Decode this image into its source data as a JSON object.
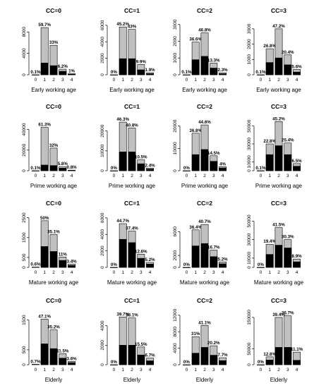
{
  "chart_data": [
    {
      "type": "bar",
      "title": "CC=0",
      "xlabel": "Early working age",
      "categories": [
        "0",
        "1",
        "2",
        "3",
        "4"
      ],
      "ylim": [
        0,
        10000
      ],
      "yticks": [
        0,
        4000,
        8000
      ],
      "series": [
        {
          "values": [
            8,
            8800,
            5500,
            1050,
            200
          ]
        },
        {
          "values": [
            0,
            2200,
            1700,
            650,
            100
          ]
        }
      ],
      "data_labels": [
        "0.1%",
        "59.7%",
        "33%",
        "6.2%",
        "1%"
      ]
    },
    {
      "type": "bar",
      "title": "CC=1",
      "xlabel": "Early working age",
      "categories": [
        "0",
        "1",
        "2",
        "3",
        "4"
      ],
      "ylim": [
        0,
        6500
      ],
      "yticks": [
        0,
        2000,
        4000,
        6000
      ],
      "series": [
        {
          "values": [
            3,
            5800,
            5500,
            1250,
            250
          ]
        },
        {
          "values": [
            0,
            1950,
            1950,
            600,
            130
          ]
        }
      ],
      "data_labels": [
        "0%",
        "45.2%",
        "43%",
        "9.9%",
        "1.9%"
      ]
    },
    {
      "type": "bar",
      "title": "CC=2",
      "xlabel": "Early working age",
      "categories": [
        "0",
        "1",
        "2",
        "3",
        "4"
      ],
      "ylim": [
        0,
        3200
      ],
      "yticks": [
        0,
        1000,
        2000,
        3000
      ],
      "series": [
        {
          "values": [
            3,
            1950,
            2500,
            700,
            120
          ]
        },
        {
          "values": [
            0,
            900,
            1100,
            400,
            60
          ]
        }
      ],
      "data_labels": [
        "0.1%",
        "36.6%",
        "46.8%",
        "13.3%",
        "2.3%"
      ]
    },
    {
      "type": "bar",
      "title": "CC=3",
      "xlabel": "Early working age",
      "categories": [
        "0",
        "1",
        "2",
        "3",
        "4"
      ],
      "ylim": [
        0,
        3500
      ],
      "yticks": [
        0,
        1000,
        2000,
        3000
      ],
      "series": [
        {
          "values": [
            3,
            1700,
            3000,
            1300,
            350
          ]
        },
        {
          "values": [
            0,
            800,
            1100,
            650,
            180
          ]
        }
      ],
      "data_labels": [
        "0.1%",
        "26.8%",
        "47.2%",
        "20.4%",
        "5.6%"
      ]
    },
    {
      "type": "bar",
      "title": "CC=0",
      "xlabel": "Prime working age",
      "categories": [
        "0",
        "1",
        "2",
        "3",
        "4"
      ],
      "ylim": [
        0,
        52000
      ],
      "yticks": [
        0,
        20000,
        40000
      ],
      "series": [
        {
          "values": [
            40,
            42000,
            22000,
            4000,
            560
          ]
        },
        {
          "values": [
            0,
            5500,
            5000,
            2500,
            400
          ]
        }
      ],
      "data_labels": [
        "0.1%",
        "61.3%",
        "32%",
        "5.8%",
        "0.8%"
      ]
    },
    {
      "type": "bar",
      "title": "CC=1",
      "xlabel": "Prime working age",
      "categories": [
        "0",
        "1",
        "2",
        "3",
        "4"
      ],
      "ylim": [
        0,
        27000
      ],
      "yticks": [
        0,
        10000,
        20000
      ],
      "series": [
        {
          "values": [
            10,
            24500,
            21500,
            5500,
            1300
          ]
        },
        {
          "values": [
            0,
            9500,
            9500,
            3500,
            800
          ]
        }
      ],
      "data_labels": [
        "0%",
        "46.3%",
        "40.8%",
        "10.5%",
        "2.4%"
      ]
    },
    {
      "type": "bar",
      "title": "CC=2",
      "xlabel": "Prime working age",
      "categories": [
        "0",
        "1",
        "2",
        "3",
        "4"
      ],
      "ylim": [
        0,
        24000
      ],
      "yticks": [
        0,
        10000,
        20000
      ],
      "series": [
        {
          "values": [
            10,
            16800,
            20500,
            6700,
            1800
          ]
        },
        {
          "values": [
            0,
            7200,
            9500,
            4200,
            1200
          ]
        }
      ],
      "data_labels": [
        "0%",
        "36.8%",
        "44.6%",
        "14.5%",
        "4%"
      ]
    },
    {
      "type": "bar",
      "title": "CC=3",
      "xlabel": "Prime working age",
      "categories": [
        "0",
        "1",
        "2",
        "3",
        "4"
      ],
      "ylim": [
        0,
        60000
      ],
      "yticks": [
        0,
        10000,
        30000,
        50000
      ],
      "series": [
        {
          "values": [
            100,
            30000,
            55000,
            31000,
            8000
          ]
        },
        {
          "values": [
            0,
            18000,
            28000,
            18000,
            5000
          ]
        }
      ],
      "data_labels": [
        "0.1%",
        "22.8%",
        "45.2%",
        "25.4%",
        "6.5%"
      ]
    },
    {
      "type": "bar",
      "title": "CC=0",
      "xlabel": "Mature working age",
      "categories": [
        "0",
        "1",
        "2",
        "3",
        "4"
      ],
      "ylim": [
        0,
        2700
      ],
      "yticks": [
        0,
        500,
        1500,
        2500
      ],
      "series": [
        {
          "values": [
            15,
            2350,
            1650,
            520,
            160
          ]
        },
        {
          "values": [
            0,
            1050,
            800,
            350,
            100
          ]
        }
      ],
      "data_labels": [
        "0.6%",
        "50%",
        "35.1%",
        "11%",
        "3.4%"
      ]
    },
    {
      "type": "bar",
      "title": "CC=1",
      "xlabel": "Mature working age",
      "categories": [
        "0",
        "1",
        "2",
        "3",
        "4"
      ],
      "ylim": [
        0,
        6500
      ],
      "yticks": [
        0,
        2000,
        4000,
        6000
      ],
      "series": [
        {
          "values": [
            5,
            5300,
            4400,
            1600,
            600
          ]
        },
        {
          "values": [
            0,
            3400,
            3000,
            1100,
            400
          ]
        }
      ],
      "data_labels": [
        "0%",
        "44.7%",
        "37.4%",
        "12.6%",
        "5.2%"
      ]
    },
    {
      "type": "bar",
      "title": "CC=2",
      "xlabel": "Mature working age",
      "categories": [
        "0",
        "1",
        "2",
        "3",
        "4"
      ],
      "ylim": [
        0,
        9000
      ],
      "yticks": [
        0,
        2000,
        6000
      ],
      "series": [
        {
          "values": [
            5,
            6300,
            7200,
            2900,
            900
          ]
        },
        {
          "values": [
            0,
            3600,
            4000,
            1800,
            600
          ]
        }
      ],
      "data_labels": [
        "0%",
        "36.4%",
        "40.7%",
        "16.7%",
        "5.2%"
      ]
    },
    {
      "type": "bar",
      "title": "CC=3",
      "xlabel": "Mature working age",
      "categories": [
        "0",
        "1",
        "2",
        "3",
        "4"
      ],
      "ylim": [
        0,
        58000
      ],
      "yticks": [
        0,
        10000,
        30000,
        50000
      ],
      "series": [
        {
          "values": [
            50,
            25000,
            43000,
            30000,
            9000
          ]
        },
        {
          "values": [
            0,
            14000,
            24000,
            21000,
            6000
          ]
        }
      ],
      "data_labels": [
        "0%",
        "19.4%",
        "41.5%",
        "30.3%",
        "8.9%"
      ]
    },
    {
      "type": "bar",
      "title": "CC=0",
      "xlabel": "Elderly",
      "categories": [
        "0",
        "1",
        "2",
        "3",
        "4"
      ],
      "ylim": [
        0,
        1800
      ],
      "yticks": [
        0,
        500,
        1500
      ],
      "series": [
        {
          "values": [
            15,
            1530,
            1170,
            370,
            110
          ]
        },
        {
          "values": [
            0,
            700,
            540,
            220,
            70
          ]
        }
      ],
      "data_labels": [
        "0.7%",
        "47.1%",
        "35.2%",
        "11.5%",
        "3.6%"
      ]
    },
    {
      "type": "bar",
      "title": "CC=1",
      "xlabel": "Elderly",
      "categories": [
        "0",
        "1",
        "2",
        "3",
        "4"
      ],
      "ylim": [
        0,
        5500
      ],
      "yticks": [
        0,
        2000,
        4000
      ],
      "series": [
        {
          "values": [
            5,
            4900,
            4800,
            1820,
            680
          ]
        },
        {
          "values": [
            0,
            2000,
            2000,
            1000,
            400
          ]
        }
      ],
      "data_labels": [
        "0%",
        "39.7%",
        "38.1%",
        "15.5%",
        "6.7%"
      ]
    },
    {
      "type": "bar",
      "title": "CC=2",
      "xlabel": "Elderly",
      "categories": [
        "0",
        "1",
        "2",
        "3",
        "4"
      ],
      "ylim": [
        0,
        13000
      ],
      "yticks": [
        0,
        4000,
        8000,
        12000
      ],
      "series": [
        {
          "values": [
            5,
            6800,
            9500,
            4600,
            1700
          ]
        },
        {
          "values": [
            0,
            2800,
            4200,
            2300,
            1000
          ]
        }
      ],
      "data_labels": [
        "0%",
        "31%",
        "41.1%",
        "20.2%",
        "7.7%"
      ]
    },
    {
      "type": "bar",
      "title": "CC=3",
      "xlabel": "Elderly",
      "categories": [
        "0",
        "1",
        "2",
        "3",
        "4"
      ],
      "ylim": [
        0,
        170000
      ],
      "yticks": [
        0,
        50000,
        150000
      ],
      "series": [
        {
          "values": [
            100,
            25000,
            150000,
            155000,
            40000
          ]
        },
        {
          "values": [
            0,
            15000,
            55000,
            55000,
            14000
          ]
        }
      ],
      "data_labels": [
        "0%",
        "12.8%",
        "39.4%",
        "36.7%",
        "11.1%"
      ]
    }
  ]
}
